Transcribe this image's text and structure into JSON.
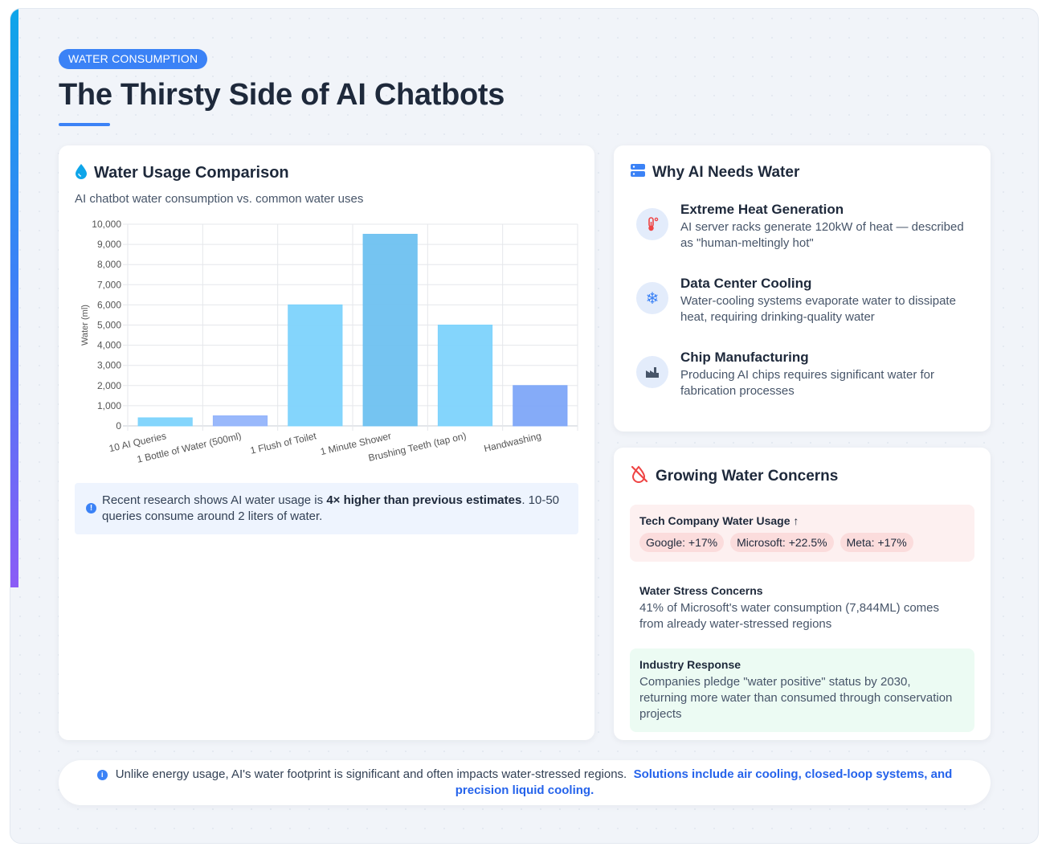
{
  "tag": "WATER CONSUMPTION",
  "title": "The Thirsty Side of AI Chatbots",
  "left_card": {
    "heading": "Water Usage Comparison",
    "heading_icon": "water-drop-icon",
    "subtitle": "AI chatbot water consumption vs. common water uses",
    "note_prefix": "Recent research shows AI water usage is ",
    "note_bold": "4× higher than previous estimates",
    "note_suffix": ". 10-50 queries consume around 2 liters of water."
  },
  "chart_data": {
    "type": "bar",
    "categories": [
      "10 AI Queries",
      "1 Bottle of Water (500ml)",
      "1 Flush of Toilet",
      "1 Minute Shower",
      "Brushing Teeth (tap on)",
      "Handwashing"
    ],
    "values": [
      400,
      500,
      6000,
      9500,
      5000,
      2000
    ],
    "colors": [
      "#7dd3fc",
      "#93b4fb",
      "#7dd3fc",
      "#6ec1f0",
      "#7dd3fc",
      "#7ea7f8"
    ],
    "xlabel": "",
    "ylabel": "Water (ml)",
    "ylim": [
      0,
      10000
    ],
    "yticks": [
      "0",
      "1,000",
      "2,000",
      "3,000",
      "4,000",
      "5,000",
      "6,000",
      "7,000",
      "8,000",
      "9,000",
      "10,000"
    ],
    "grid": true
  },
  "why": {
    "heading": "Why AI Needs Water",
    "heading_icon": "server-icon",
    "items": [
      {
        "title": "Extreme Heat Generation",
        "desc": "AI server racks generate 120kW of heat — described as \"human-meltingly hot\"",
        "icon": "thermometer-icon",
        "icon_color": "#ef4444"
      },
      {
        "title": "Data Center Cooling",
        "desc": "Water-cooling systems evaporate water to dissipate heat, requiring drinking-quality water",
        "icon": "snowflake-icon",
        "icon_color": "#3b82f6"
      },
      {
        "title": "Chip Manufacturing",
        "desc": "Producing AI chips requires significant water for fabrication processes",
        "icon": "factory-icon",
        "icon_color": "#475569"
      }
    ]
  },
  "concerns": {
    "heading": "Growing Water Concerns",
    "heading_icon": "water-off-icon",
    "usage_title": "Tech Company Water Usage ↑",
    "usage_pills": [
      "Google: +17%",
      "Microsoft: +22.5%",
      "Meta: +17%"
    ],
    "stress_title": "Water Stress Concerns",
    "stress_text": "41% of Microsoft's water consumption (7,844ML) comes from already water-stressed regions",
    "response_title": "Industry Response",
    "response_text": "Companies pledge \"water positive\" status by 2030, returning more water than consumed through conservation projects"
  },
  "footer": {
    "text": "Unlike energy usage, AI's water footprint is significant and often impacts water-stressed regions.",
    "highlight": "Solutions include air cooling, closed-loop systems, and precision liquid cooling."
  }
}
